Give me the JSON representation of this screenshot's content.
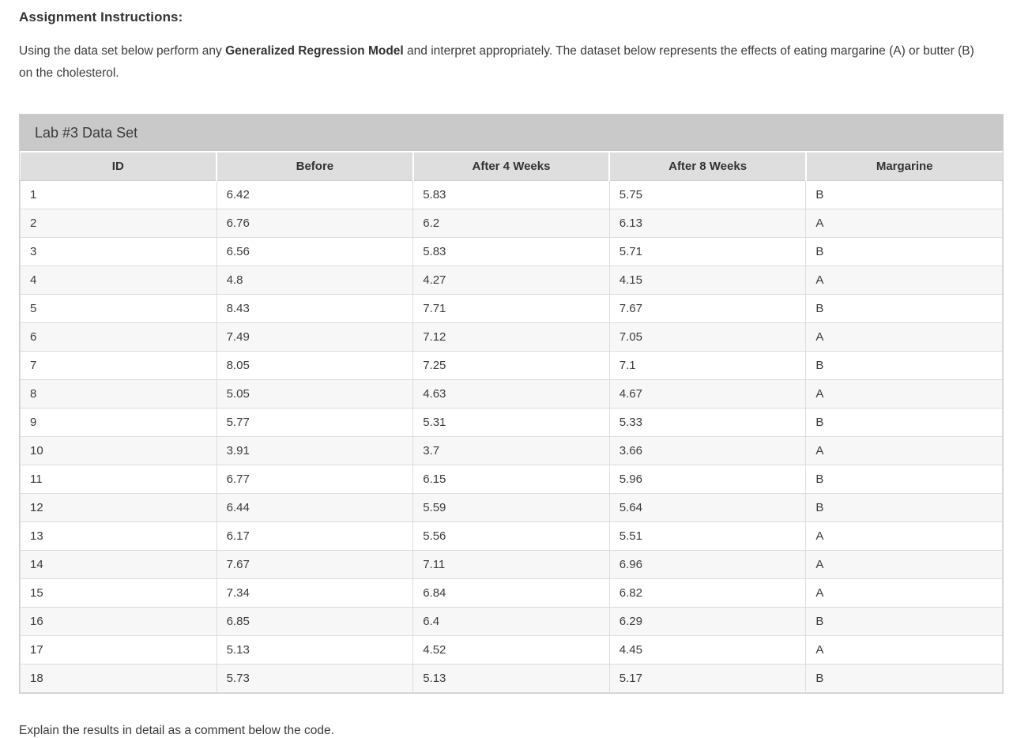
{
  "page": {
    "heading": "Assignment Instructions:",
    "intro": {
      "before": "Using the data set below perform any ",
      "bold": "Generalized Regression Model",
      "after": " and interpret appropriately. The dataset below represents the effects of eating margarine (A) or butter (B) on the cholesterol."
    },
    "footer_note": "Explain the results in detail as a comment below the code."
  },
  "table": {
    "caption": "Lab #3 Data Set",
    "columns": [
      "ID",
      "Before",
      "After 4 Weeks",
      "After 8 Weeks",
      "Margarine"
    ],
    "rows": [
      [
        "1",
        "6.42",
        "5.83",
        "5.75",
        "B"
      ],
      [
        "2",
        "6.76",
        "6.2",
        "6.13",
        "A"
      ],
      [
        "3",
        "6.56",
        "5.83",
        "5.71",
        "B"
      ],
      [
        "4",
        "4.8",
        "4.27",
        "4.15",
        "A"
      ],
      [
        "5",
        "8.43",
        "7.71",
        "7.67",
        "B"
      ],
      [
        "6",
        "7.49",
        "7.12",
        "7.05",
        "A"
      ],
      [
        "7",
        "8.05",
        "7.25",
        "7.1",
        "B"
      ],
      [
        "8",
        "5.05",
        "4.63",
        "4.67",
        "A"
      ],
      [
        "9",
        "5.77",
        "5.31",
        "5.33",
        "B"
      ],
      [
        "10",
        "3.91",
        "3.7",
        "3.66",
        "A"
      ],
      [
        "11",
        "6.77",
        "6.15",
        "5.96",
        "B"
      ],
      [
        "12",
        "6.44",
        "5.59",
        "5.64",
        "B"
      ],
      [
        "13",
        "6.17",
        "5.56",
        "5.51",
        "A"
      ],
      [
        "14",
        "7.67",
        "7.11",
        "6.96",
        "A"
      ],
      [
        "15",
        "7.34",
        "6.84",
        "6.82",
        "A"
      ],
      [
        "16",
        "6.85",
        "6.4",
        "6.29",
        "B"
      ],
      [
        "17",
        "5.13",
        "4.52",
        "4.45",
        "A"
      ],
      [
        "18",
        "5.73",
        "5.13",
        "5.17",
        "B"
      ]
    ]
  },
  "colors": {
    "caption_bg": "#c9c9c9",
    "header_bg": "#dedede",
    "row_alt_bg": "#f7f7f7",
    "border": "#cfcfcf",
    "text": "#3c3c3c"
  }
}
